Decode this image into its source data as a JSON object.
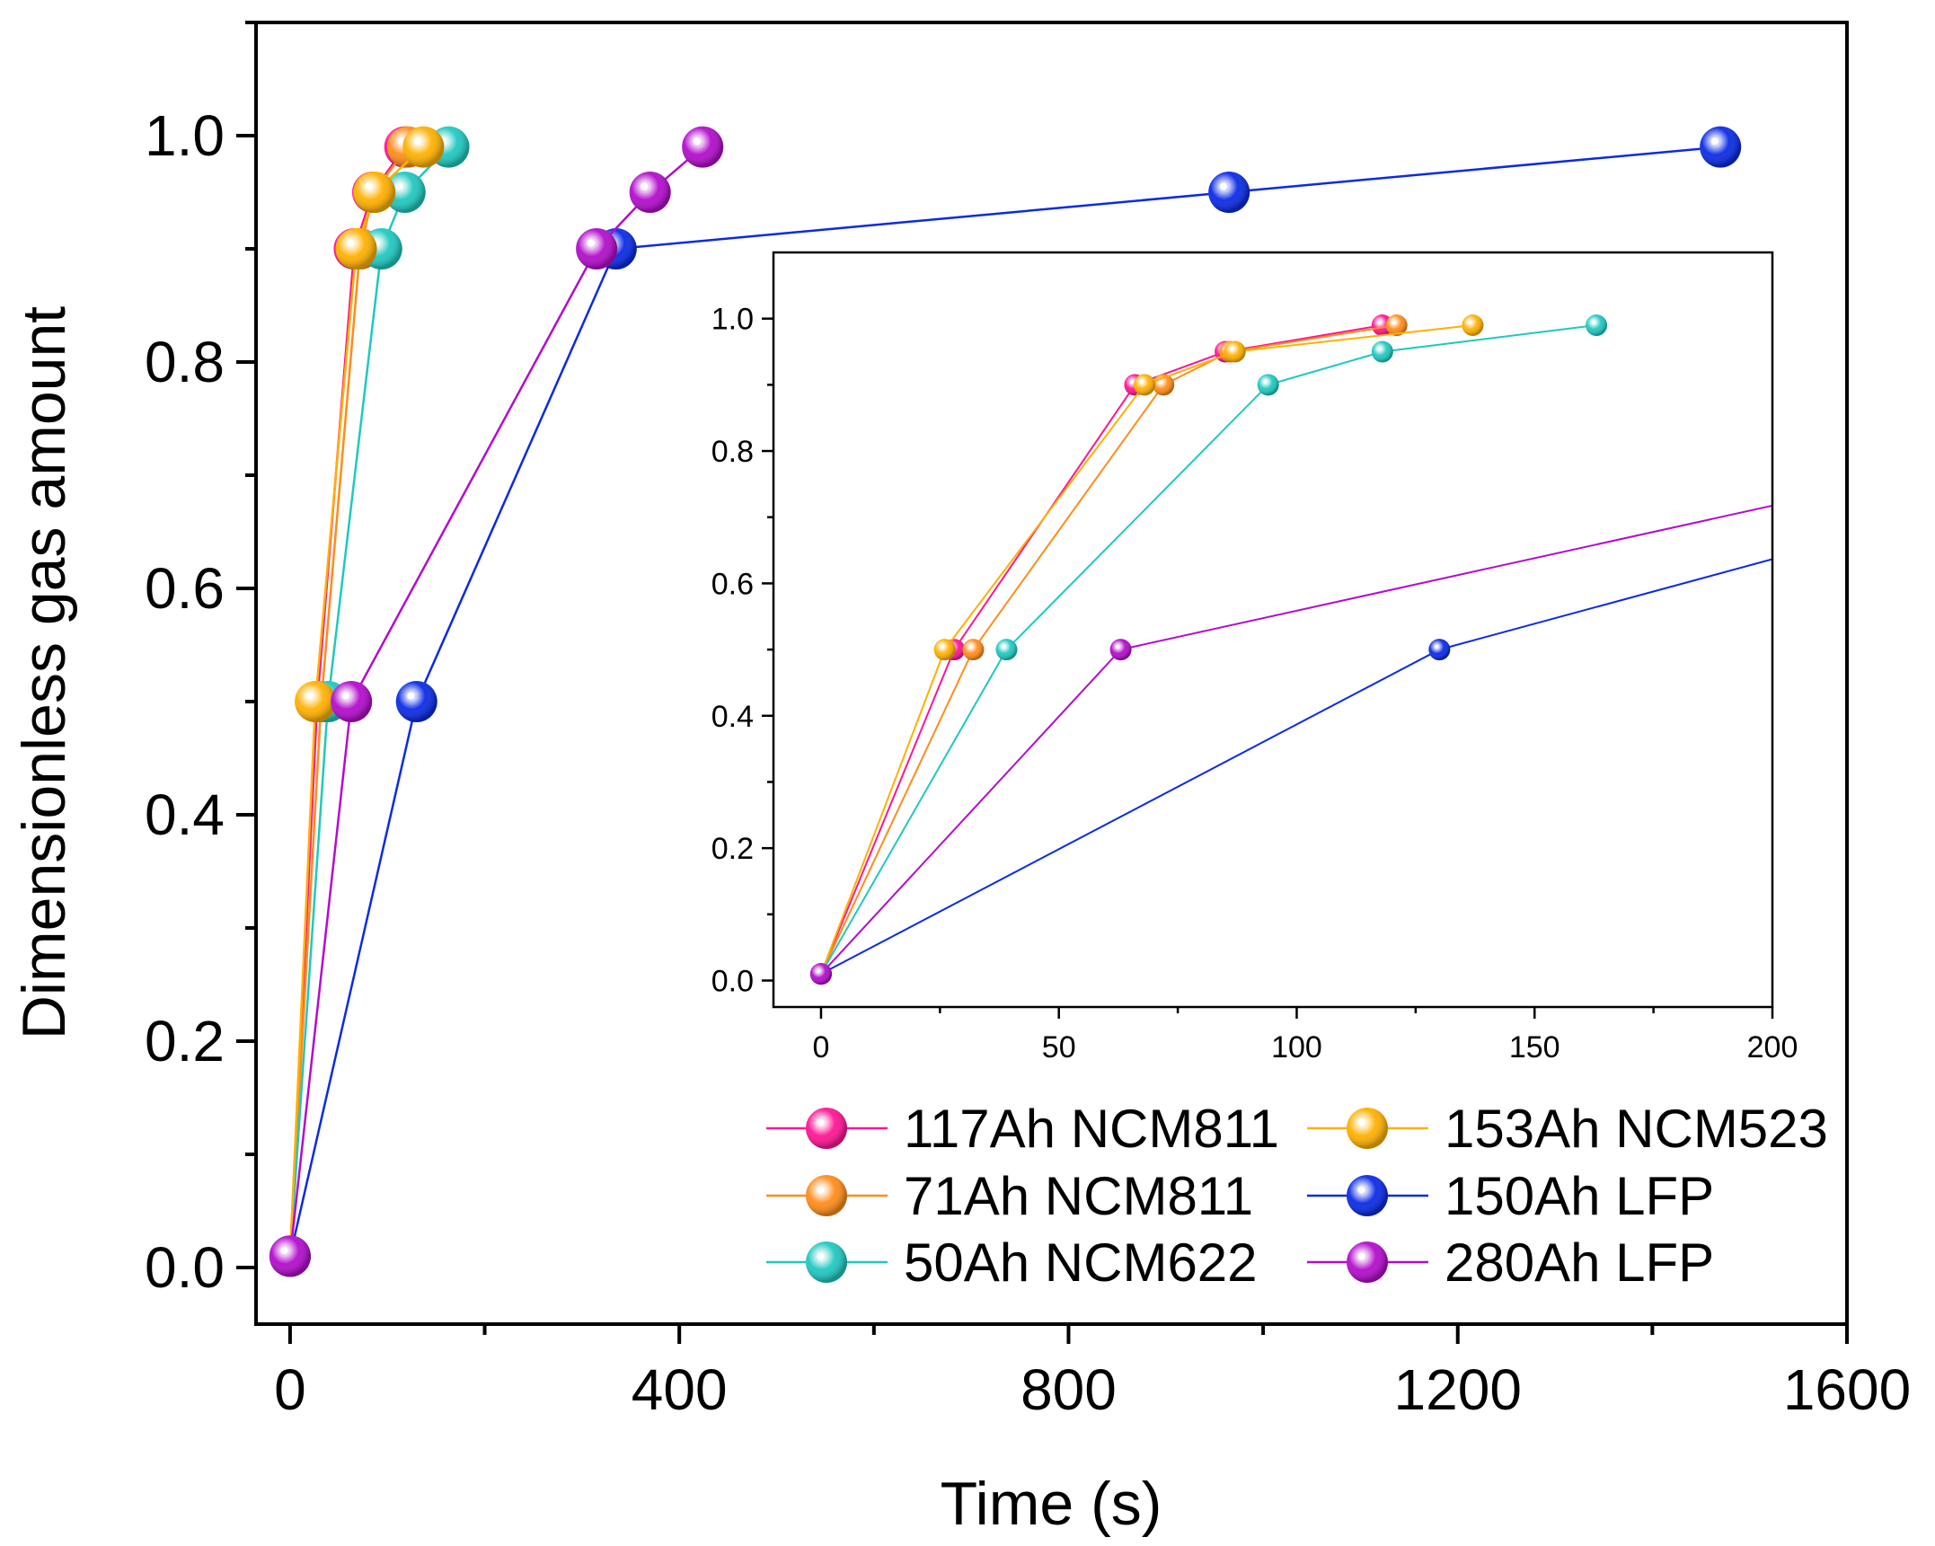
{
  "chart_data": {
    "type": "line",
    "xlabel": "Time (s)",
    "ylabel": "Dimensionless gas amount",
    "xlim": [
      -35,
      1600
    ],
    "ylim": [
      -0.05,
      1.1
    ],
    "xticks": [
      0,
      400,
      800,
      1200,
      1600
    ],
    "xtick_labels": [
      "0",
      "400",
      "800",
      "1200",
      "1600"
    ],
    "yticks": [
      0.0,
      0.2,
      0.4,
      0.6,
      0.8,
      1.0
    ],
    "ytick_labels": [
      "0.0",
      "0.2",
      "0.4",
      "0.6",
      "0.8",
      "1.0"
    ],
    "legend_position": "bottom-right",
    "series": [
      {
        "name": "117Ah NCM811",
        "color": "#ff1493",
        "x": [
          0,
          28,
          66,
          85,
          118
        ],
        "y": [
          0.01,
          0.5,
          0.9,
          0.95,
          0.99
        ]
      },
      {
        "name": "71Ah NCM811",
        "color": "#ff8c1a",
        "x": [
          0,
          32,
          72,
          86,
          121
        ],
        "y": [
          0.01,
          0.5,
          0.9,
          0.95,
          0.99
        ]
      },
      {
        "name": "50Ah NCM622",
        "color": "#1fc8c0",
        "x": [
          0,
          39,
          94,
          118,
          163
        ],
        "y": [
          0.01,
          0.5,
          0.9,
          0.95,
          0.99
        ]
      },
      {
        "name": "153Ah NCM523",
        "color": "#ffb000",
        "x": [
          0,
          26,
          68,
          87,
          137
        ],
        "y": [
          0.01,
          0.5,
          0.9,
          0.95,
          0.99
        ]
      },
      {
        "name": "150Ah LFP",
        "color": "#0a2ae6",
        "x": [
          0,
          130,
          335,
          965,
          1470
        ],
        "y": [
          0.01,
          0.5,
          0.9,
          0.95,
          0.99
        ]
      },
      {
        "name": "280Ah LFP",
        "color": "#b30ccc",
        "x": [
          0,
          63,
          315,
          370,
          424
        ],
        "y": [
          0.01,
          0.5,
          0.9,
          0.95,
          0.99
        ]
      }
    ],
    "inset": {
      "xlim": [
        -10,
        200
      ],
      "ylim": [
        -0.04,
        1.1
      ],
      "xticks": [
        0,
        50,
        100,
        150,
        200
      ],
      "xtick_labels": [
        "0",
        "50",
        "100",
        "150",
        "200"
      ],
      "yticks": [
        0.0,
        0.2,
        0.4,
        0.6,
        0.8,
        1.0
      ],
      "ytick_labels": [
        "0.0",
        "0.2",
        "0.4",
        "0.6",
        "0.8",
        "1.0"
      ]
    }
  }
}
